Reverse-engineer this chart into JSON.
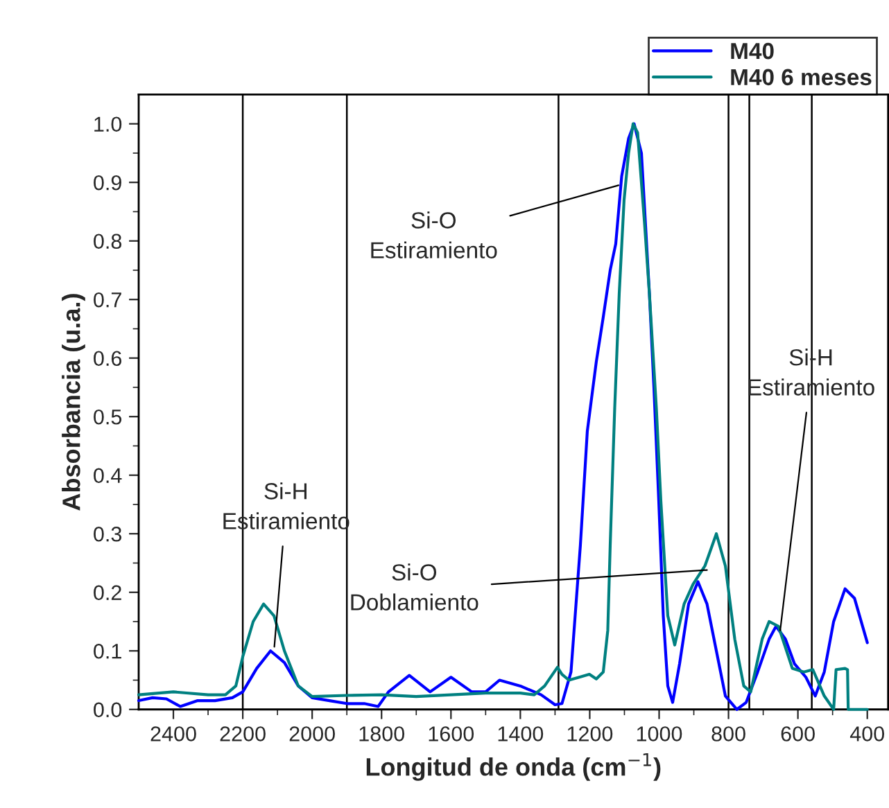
{
  "chart_data": {
    "type": "line",
    "xlabel": "Longitud de onda (cm$^{−1}$)",
    "ylabel": "Absorbancia (u.a.)",
    "xlim": [
      2500,
      340
    ],
    "xticks": [
      2400,
      2200,
      2000,
      1800,
      1600,
      1400,
      1200,
      1000,
      800,
      600,
      400
    ],
    "ylim": [
      0,
      1.05
    ],
    "yticks": [
      {
        "value": 0,
        "label": "0.0"
      },
      0.1,
      0.2,
      0.3,
      0.4,
      0.5,
      0.6,
      0.7,
      0.8,
      0.9,
      {
        "value": 1,
        "label": "1.0"
      }
    ],
    "grid": false,
    "legend": "top right",
    "line_style": "solid",
    "marker": "none",
    "ref_lines": [
      {
        "axis": "x",
        "value": 2200,
        "color": "#000000"
      },
      {
        "axis": "x",
        "value": 1900,
        "color": "#000000"
      },
      {
        "axis": "x",
        "value": 1290,
        "color": "#000000"
      },
      {
        "axis": "x",
        "value": 800,
        "color": "#000000"
      },
      {
        "axis": "x",
        "value": 740,
        "color": "#000000"
      },
      {
        "axis": "x",
        "value": 560,
        "color": "#000000"
      }
    ],
    "annotations": [
      {
        "text": "Si-H\nEstiramiento",
        "x": 2109,
        "y": 0.107
      },
      {
        "text": "Si-O\nEstiramiento",
        "x": 1117,
        "y": 0.895
      },
      {
        "text": "Si-O\nDoblamiento",
        "x": 862,
        "y": 0.238
      },
      {
        "text": "Si-H\nEstiramiento",
        "x": 651,
        "y": 0.135
      }
    ],
    "series": [
      {
        "name": "M40",
        "color": "#0000ff",
        "x": [
          2500,
          2460,
          2420,
          2380,
          2330,
          2280,
          2230,
          2200,
          2160,
          2120,
          2080,
          2040,
          2000,
          1950,
          1900,
          1850,
          1810,
          1780,
          1720,
          1660,
          1600,
          1540,
          1500,
          1460,
          1400,
          1340,
          1300,
          1280,
          1254,
          1247,
          1227,
          1207,
          1181,
          1161,
          1141,
          1125,
          1108,
          1088,
          1072,
          1051,
          1038,
          1028,
          1015,
          1001,
          988,
          975,
          961,
          941,
          915,
          888,
          862,
          835,
          809,
          776,
          749,
          716,
          683,
          663,
          636,
          610,
          577,
          550,
          524,
          497,
          464,
          437,
          400
        ],
        "values": [
          0.015,
          0.02,
          0.018,
          0.005,
          0.015,
          0.015,
          0.02,
          0.03,
          0.07,
          0.1,
          0.08,
          0.04,
          0.02,
          0.015,
          0.01,
          0.01,
          0.005,
          0.03,
          0.058,
          0.03,
          0.055,
          0.03,
          0.03,
          0.05,
          0.04,
          0.025,
          0.008,
          0.01,
          0.064,
          0.12,
          0.28,
          0.475,
          0.594,
          0.67,
          0.75,
          0.795,
          0.91,
          0.975,
          1.0,
          0.95,
          0.815,
          0.71,
          0.55,
          0.356,
          0.16,
          0.04,
          0.012,
          0.078,
          0.18,
          0.218,
          0.18,
          0.1,
          0.023,
          0.0,
          0.012,
          0.064,
          0.12,
          0.142,
          0.12,
          0.078,
          0.055,
          0.023,
          0.064,
          0.15,
          0.206,
          0.19,
          0.114
        ]
      },
      {
        "name": "M40 6 meses",
        "color": "#008080",
        "x": [
          2500,
          2400,
          2300,
          2250,
          2220,
          2200,
          2170,
          2140,
          2110,
          2080,
          2040,
          2000,
          1900,
          1800,
          1700,
          1600,
          1500,
          1400,
          1360,
          1330,
          1293,
          1280,
          1260,
          1230,
          1201,
          1181,
          1161,
          1148,
          1141,
          1128,
          1115,
          1101,
          1088,
          1075,
          1062,
          1042,
          1028,
          1008,
          995,
          975,
          955,
          928,
          902,
          868,
          835,
          809,
          782,
          756,
          736,
          703,
          683,
          656,
          616,
          583,
          557,
          524,
          497,
          490,
          464,
          457,
          455,
          400
        ],
        "values": [
          0.025,
          0.03,
          0.025,
          0.025,
          0.04,
          0.09,
          0.15,
          0.18,
          0.16,
          0.1,
          0.04,
          0.022,
          0.024,
          0.025,
          0.022,
          0.025,
          0.028,
          0.028,
          0.025,
          0.04,
          0.072,
          0.06,
          0.05,
          0.055,
          0.06,
          0.052,
          0.064,
          0.135,
          0.28,
          0.515,
          0.71,
          0.87,
          0.95,
          1.0,
          0.985,
          0.83,
          0.71,
          0.515,
          0.356,
          0.16,
          0.11,
          0.18,
          0.214,
          0.245,
          0.3,
          0.245,
          0.12,
          0.04,
          0.03,
          0.12,
          0.15,
          0.142,
          0.07,
          0.064,
          0.068,
          0.023,
          0.0,
          0.068,
          0.07,
          0.068,
          0.0,
          0.0
        ]
      }
    ]
  }
}
